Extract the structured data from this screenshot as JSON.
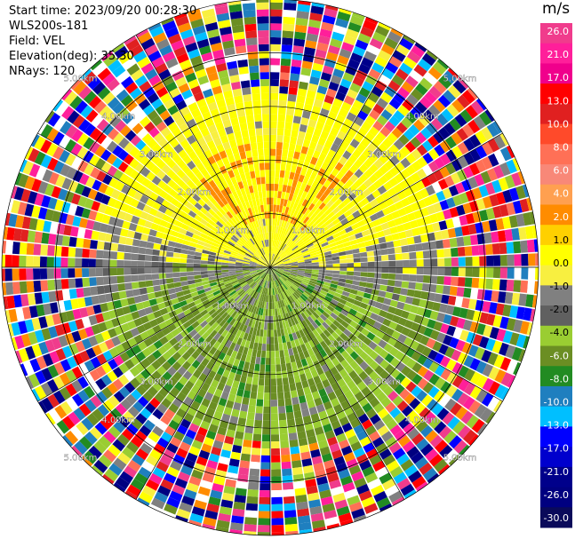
{
  "header": {
    "start_time": "Start time: 2023/09/20 00:28:30",
    "instrument": "WLS200s-181",
    "field": "Field: VEL",
    "elevation": "Elevation(deg): 35.30",
    "nrays": "NRays: 120"
  },
  "chart_data": {
    "type": "heatmap",
    "projection": "polar-ppi",
    "field": "VEL",
    "unit": "m/s",
    "nrays": 120,
    "range_rings_km": [
      1.0,
      2.0,
      3.0,
      4.0,
      5.0
    ],
    "ring_labels": [
      "1.00km",
      "2.00km",
      "3.00km",
      "4.00km",
      "5.00km"
    ],
    "max_range_km": 5.0,
    "radial_spokes_deg": [
      0,
      30,
      60,
      90,
      120,
      150,
      180,
      210,
      240,
      270,
      300,
      330
    ],
    "pattern": {
      "north_sector_deg": [
        270,
        90
      ],
      "north_values": "positive ~ +2 to +6 m/s (yellow / orange), strongest near 1.3–2.2 km north",
      "south_values": "negative ~ -2 to -6 m/s (light / dark green)",
      "transition_near_east_west": "near-zero (gray)",
      "noise_beyond_km": 3.2
    },
    "colorbar": {
      "title": "m/s",
      "ticks": [
        "26.0",
        "21.0",
        "17.0",
        "13.0",
        "10.0",
        "8.0",
        "6.0",
        "4.0",
        "2.0",
        "1.0",
        "0.0",
        "-1.0",
        "-2.0",
        "-4.0",
        "-6.0",
        "-8.0",
        "-10.0",
        "-13.0",
        "-17.0",
        "-21.0",
        "-26.0",
        "-30.0"
      ],
      "colors": [
        "#f03c8c",
        "#ff1f9a",
        "#f0008c",
        "#ff0000",
        "#e02020",
        "#ff4a2a",
        "#ff7056",
        "#f88878",
        "#ffa050",
        "#ff8c00",
        "#ffd000",
        "#ffff00",
        "#f8ef40",
        "#808080",
        "#606060",
        "#9acd32",
        "#6b8e23",
        "#228b22",
        "#1f7fbf",
        "#00bfff",
        "#0000ff",
        "#0000cd",
        "#00008b",
        "#000080",
        "#0a0a5a"
      ]
    }
  }
}
